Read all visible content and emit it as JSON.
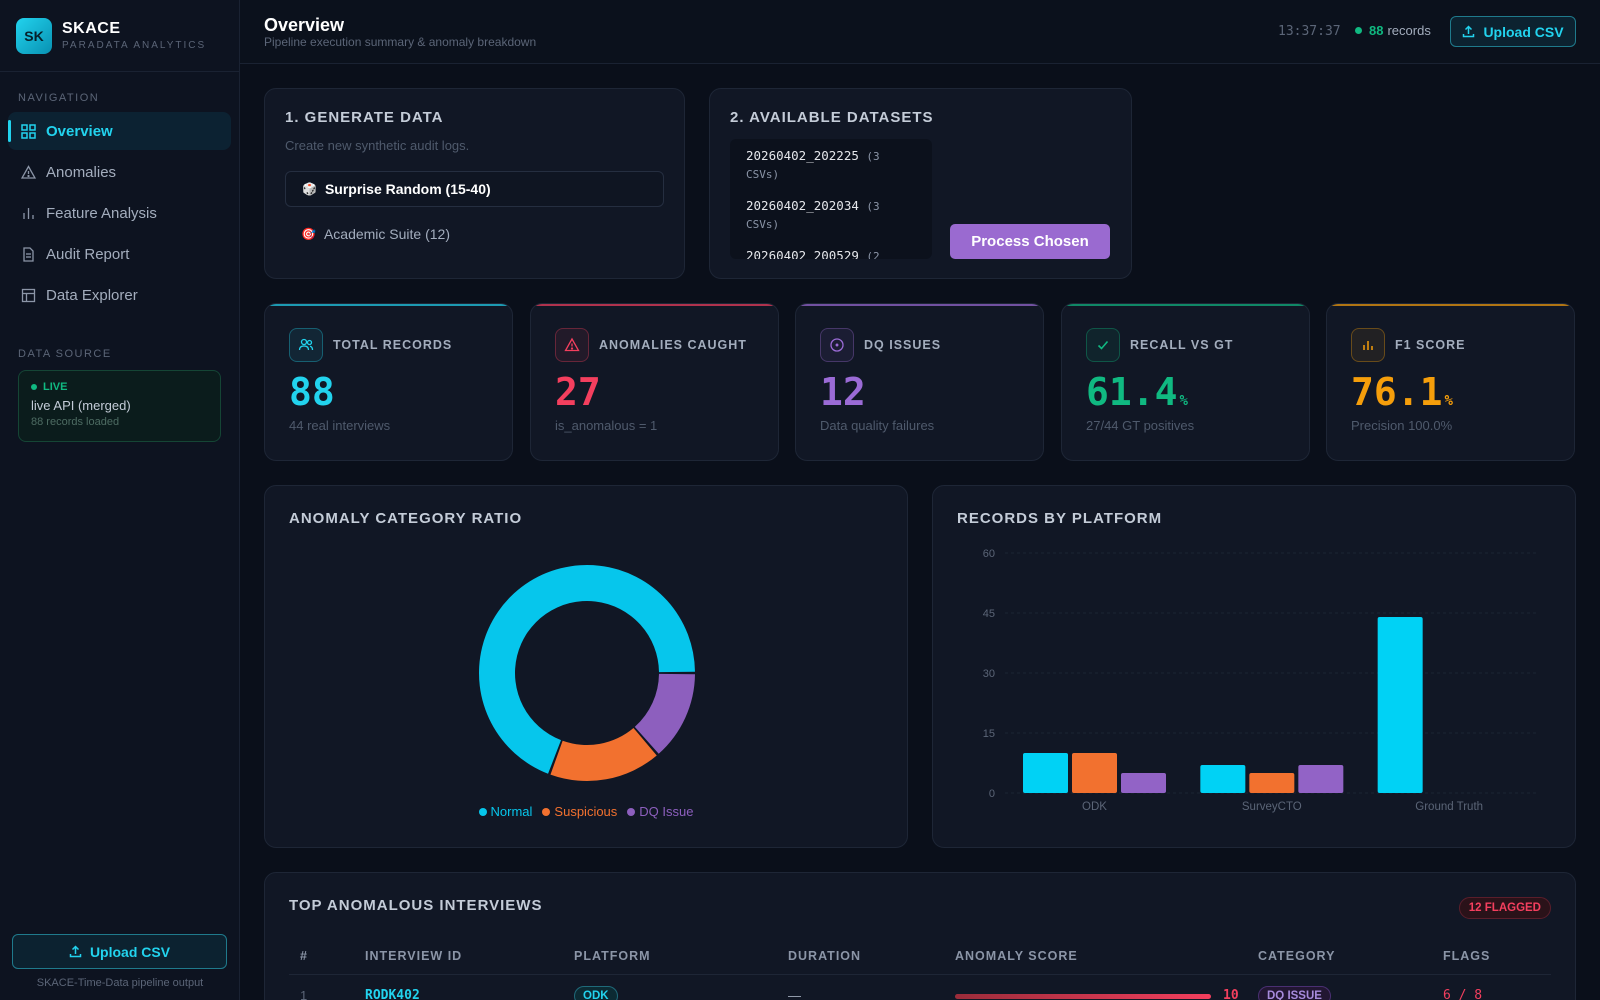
{
  "brand": {
    "logo": "SK",
    "name": "SKACE",
    "sub": "PARADATA ANALYTICS"
  },
  "nav": {
    "label": "NAVIGATION",
    "items": [
      {
        "label": "Overview",
        "icon": "grid-icon",
        "active": true
      },
      {
        "label": "Anomalies",
        "icon": "alert-triangle-icon"
      },
      {
        "label": "Feature Analysis",
        "icon": "bar-chart-icon"
      },
      {
        "label": "Audit Report",
        "icon": "document-icon"
      },
      {
        "label": "Data Explorer",
        "icon": "table-icon"
      }
    ]
  },
  "datasource": {
    "label": "DATA SOURCE",
    "status": "LIVE",
    "source": "live API (merged)",
    "count": "88 records loaded"
  },
  "sidebar_upload": "Upload CSV",
  "sidebar_footer": "SKACE-Time-Data pipeline output",
  "header": {
    "title": "Overview",
    "subtitle": "Pipeline execution summary & anomaly breakdown",
    "clock": "13:37:37",
    "records_count": "88",
    "records_label": "records",
    "upload_label": "Upload CSV"
  },
  "generate": {
    "title": "1. GENERATE DATA",
    "subtitle": "Create new synthetic audit logs.",
    "option1": "Surprise Random (15-40)",
    "option2": "Academic Suite (12)"
  },
  "datasets": {
    "title": "2. AVAILABLE DATASETS",
    "items": [
      {
        "name": "20260402_202225",
        "count": "(3 CSVs)"
      },
      {
        "name": "20260402_202034",
        "count": "(3 CSVs)"
      },
      {
        "name": "20260402_200529",
        "count": "(2"
      }
    ],
    "process_label": "Process Chosen"
  },
  "stats": [
    {
      "label": "TOTAL RECORDS",
      "value": "88",
      "unit": "",
      "sub": "44 real interviews",
      "color": "#22d3ee",
      "icon": "users-icon"
    },
    {
      "label": "ANOMALIES CAUGHT",
      "value": "27",
      "unit": "",
      "sub": "is_anomalous = 1",
      "color": "#f43f5e",
      "icon": "alert-triangle-icon"
    },
    {
      "label": "DQ ISSUES",
      "value": "12",
      "unit": "",
      "sub": "Data quality failures",
      "color": "#9b6bd6",
      "icon": "circle-info-icon"
    },
    {
      "label": "RECALL VS GT",
      "value": "61.4",
      "unit": "%",
      "sub": "27/44 GT positives",
      "color": "#10b981",
      "icon": "check-icon"
    },
    {
      "label": "F1 SCORE",
      "value": "76.1",
      "unit": "%",
      "sub": "Precision 100.0%",
      "color": "#f59e0b",
      "icon": "bar-chart-icon"
    }
  ],
  "donut": {
    "title": "ANOMALY CATEGORY RATIO",
    "legend": [
      "Normal",
      "Suspicious",
      "DQ Issue"
    ]
  },
  "bars": {
    "title": "RECORDS BY PLATFORM"
  },
  "chart_data": [
    {
      "type": "pie",
      "title": "ANOMALY CATEGORY RATIO",
      "categories": [
        "Normal",
        "Suspicious",
        "DQ Issue"
      ],
      "values": [
        61,
        15,
        12
      ],
      "colors": [
        "#06c6ec",
        "#f2712f",
        "#8d5fbe"
      ],
      "donut": true,
      "legend": "bottom"
    },
    {
      "type": "bar",
      "title": "RECORDS BY PLATFORM",
      "categories": [
        "ODK",
        "SurveyCTO",
        "Ground Truth"
      ],
      "series": [
        {
          "values": [
            10,
            7,
            44
          ],
          "color": "#00d2f5"
        },
        {
          "values": [
            10,
            5,
            0
          ],
          "color": "#f2712f"
        },
        {
          "values": [
            5,
            7,
            0
          ],
          "color": "#9263c6"
        }
      ],
      "ylim": [
        0,
        60
      ],
      "yticks": [
        0,
        15,
        30,
        45,
        60
      ],
      "grid": true
    }
  ],
  "table": {
    "title": "TOP ANOMALOUS INTERVIEWS",
    "badge": "12 FLAGGED",
    "headers": [
      "#",
      "INTERVIEW ID",
      "PLATFORM",
      "DURATION",
      "ANOMALY SCORE",
      "CATEGORY",
      "FLAGS"
    ],
    "rows": [
      {
        "rank": "1",
        "id": "RODK402",
        "platform": "ODK",
        "duration": "—",
        "score": "10",
        "score_fraction": 1.0,
        "category": "DQ ISSUE",
        "flags": "6 / 8"
      }
    ]
  }
}
